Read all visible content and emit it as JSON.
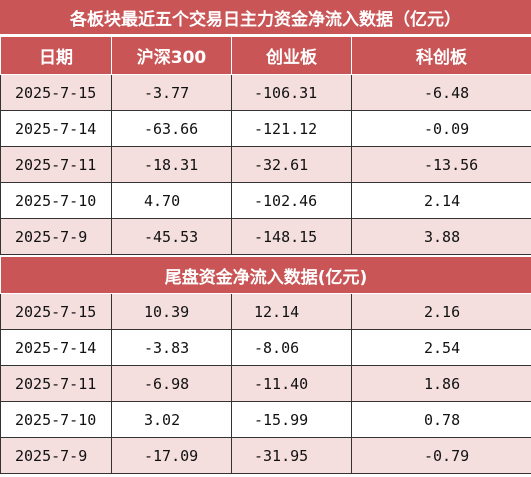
{
  "title": "各板块最近五个交易日主力资金净流入数据（亿元）",
  "headers": [
    "日期",
    "沪深300",
    "创业板",
    "科创板"
  ],
  "main_rows": [
    {
      "date": "2025-7-15",
      "hs300": "-3.77",
      "cyb": "-106.31",
      "kcb": "-6.48"
    },
    {
      "date": "2025-7-14",
      "hs300": "-63.66",
      "cyb": "-121.12",
      "kcb": "-0.09"
    },
    {
      "date": "2025-7-11",
      "hs300": "-18.31",
      "cyb": "-32.61",
      "kcb": "-13.56"
    },
    {
      "date": "2025-7-10",
      "hs300": "4.70",
      "cyb": "-102.46",
      "kcb": "2.14"
    },
    {
      "date": "2025-7-9",
      "hs300": "-45.53",
      "cyb": "-148.15",
      "kcb": "3.88"
    }
  ],
  "tail_title": "尾盘资金净流入数据(亿元)",
  "tail_rows": [
    {
      "date": "2025-7-15",
      "hs300": "10.39",
      "cyb": "12.14",
      "kcb": "2.16"
    },
    {
      "date": "2025-7-14",
      "hs300": "-3.83",
      "cyb": "-8.06",
      "kcb": "2.54"
    },
    {
      "date": "2025-7-11",
      "hs300": "-6.98",
      "cyb": "-11.40",
      "kcb": "1.86"
    },
    {
      "date": "2025-7-10",
      "hs300": "3.02",
      "cyb": "-15.99",
      "kcb": "0.78"
    },
    {
      "date": "2025-7-9",
      "hs300": "-17.09",
      "cyb": "-31.95",
      "kcb": "-0.79"
    }
  ],
  "colors": {
    "header_bg": "#c95556",
    "row_alt": "#f4dede",
    "row_plain": "#ffffff"
  }
}
